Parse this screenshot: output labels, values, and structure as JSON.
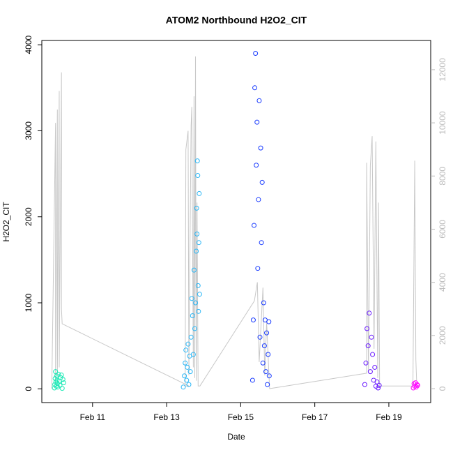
{
  "chart_data": {
    "type": "scatter",
    "title": "ATOM2 Northbound H2O2_CIT",
    "x_label": "Date",
    "y_label": "H2O2_CIT",
    "xlim": [
      9.63,
      20.13
    ],
    "ylim": [
      -160,
      4050
    ],
    "y2lim": [
      -525,
      13100
    ],
    "xticks": [
      {
        "value": 11,
        "label": "Feb 11"
      },
      {
        "value": 13,
        "label": "Feb 13"
      },
      {
        "value": 15,
        "label": "Feb 15"
      },
      {
        "value": 17,
        "label": "Feb 17"
      },
      {
        "value": 19,
        "label": "Feb 19"
      }
    ],
    "yticks": [
      0,
      1000,
      2000,
      3000,
      4000
    ],
    "y2ticks": [
      0,
      2000,
      4000,
      6000,
      8000,
      10000,
      12000
    ],
    "y2_color": "#bbbbbb",
    "series": [
      {
        "color": "#1de9b6",
        "x": [
          9.97,
          9.98,
          9.99,
          10.0,
          10.01,
          10.02,
          10.03,
          10.04,
          10.05,
          10.06,
          10.08,
          10.1,
          10.12,
          10.14,
          10.16,
          10.18,
          10.2,
          10.22
        ],
        "values": [
          10,
          50,
          120,
          200,
          80,
          30,
          150,
          100,
          60,
          20,
          170,
          90,
          40,
          130,
          160,
          5,
          110,
          70
        ]
      },
      {
        "color": "#29b6f6",
        "x": [
          13.45,
          13.48,
          13.5,
          13.52,
          13.54,
          13.56,
          13.58,
          13.6,
          13.62,
          13.64,
          13.66,
          13.68,
          13.7,
          13.72,
          13.74,
          13.76,
          13.78,
          13.8,
          13.81,
          13.82,
          13.83,
          13.84,
          13.85,
          13.86,
          13.87,
          13.88,
          13.89
        ],
        "values": [
          20,
          150,
          300,
          450,
          100,
          250,
          520,
          50,
          380,
          200,
          600,
          1050,
          850,
          400,
          1380,
          700,
          1000,
          1600,
          2100,
          1800,
          2650,
          2480,
          1200,
          900,
          1700,
          2270,
          1100
        ]
      },
      {
        "color": "#1a3cff",
        "x": [
          15.32,
          15.34,
          15.36,
          15.38,
          15.4,
          15.42,
          15.44,
          15.46,
          15.48,
          15.5,
          15.52,
          15.54,
          15.56,
          15.58,
          15.6,
          15.62,
          15.64,
          15.66,
          15.68,
          15.7,
          15.72,
          15.74,
          15.76,
          15.77
        ],
        "values": [
          100,
          800,
          1900,
          3500,
          3900,
          2600,
          3100,
          1400,
          2200,
          3350,
          600,
          2800,
          1700,
          2400,
          300,
          1000,
          500,
          800,
          200,
          650,
          50,
          400,
          780,
          150
        ]
      },
      {
        "color": "#6a1bff",
        "x": [
          18.35,
          18.38,
          18.41,
          18.44,
          18.47,
          18.5,
          18.53,
          18.56,
          18.59,
          18.62,
          18.65,
          18.68,
          18.71,
          18.74
        ],
        "values": [
          50,
          300,
          700,
          500,
          880,
          200,
          600,
          400,
          100,
          250,
          30,
          80,
          10,
          40
        ]
      },
      {
        "color": "#ff00ff",
        "x": [
          19.66,
          19.68,
          19.7,
          19.72,
          19.74,
          19.76,
          19.78
        ],
        "values": [
          10,
          60,
          30,
          70,
          20,
          50,
          40
        ]
      }
    ],
    "line": {
      "color": "#c8c8c8",
      "axis": "y2",
      "x": [
        9.9,
        10.0,
        10.0,
        10.05,
        10.05,
        10.1,
        10.1,
        10.16,
        10.16,
        10.18,
        13.6,
        13.5,
        13.52,
        13.58,
        13.6,
        13.66,
        13.68,
        13.72,
        13.74,
        13.76,
        13.78,
        13.8,
        13.82,
        13.85,
        13.9,
        15.37,
        15.45,
        15.5,
        15.6,
        15.65,
        15.7,
        15.78,
        18.4,
        18.4,
        18.45,
        18.5,
        18.55,
        18.6,
        18.65,
        18.7,
        18.72,
        18.75,
        19.65,
        19.7,
        19.73,
        19.75
      ],
      "values": [
        0,
        10000,
        200,
        10500,
        500,
        11200,
        800,
        11900,
        3000,
        2440,
        100,
        100,
        9000,
        9700,
        500,
        9900,
        10600,
        800,
        11000,
        400,
        12500,
        300,
        7000,
        100,
        100,
        3300,
        4000,
        1000,
        3800,
        500,
        2500,
        0,
        580,
        8500,
        600,
        8400,
        9500,
        1500,
        9300,
        400,
        7000,
        100,
        100,
        8580,
        1100,
        300
      ]
    }
  }
}
